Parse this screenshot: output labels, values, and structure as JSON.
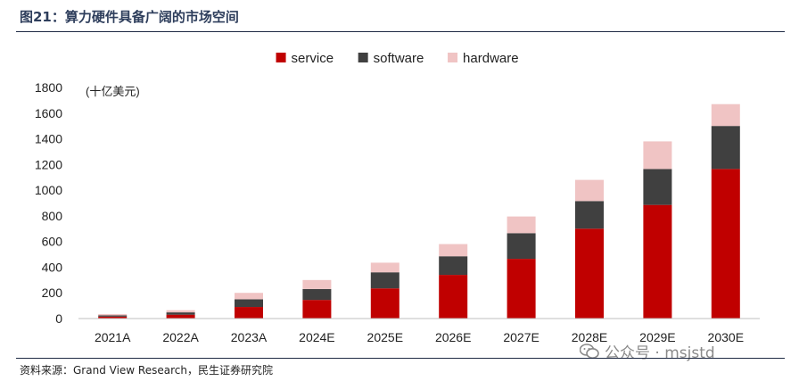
{
  "title": "图21：算力硬件具备广阔的市场空间",
  "source": "资料来源：Grand View Research，民生证券研究院",
  "watermark": "公众号 · msjstd",
  "colors": {
    "service": "#c00000",
    "software": "#404040",
    "hardware": "#f0c4c4"
  },
  "chart_data": {
    "type": "bar",
    "stacked": true,
    "unit": "(十亿美元)",
    "categories": [
      "2021A",
      "2022A",
      "2023A",
      "2024E",
      "2025E",
      "2026E",
      "2027E",
      "2028E",
      "2029E",
      "2030E"
    ],
    "series": [
      {
        "name": "service",
        "values": [
          15,
          30,
          90,
          145,
          235,
          340,
          465,
          700,
          885,
          1165
        ]
      },
      {
        "name": "software",
        "values": [
          10,
          18,
          60,
          85,
          125,
          145,
          200,
          215,
          280,
          335
        ]
      },
      {
        "name": "hardware",
        "values": [
          10,
          17,
          50,
          70,
          75,
          95,
          130,
          165,
          215,
          170
        ]
      }
    ],
    "ylim": [
      0,
      1800
    ],
    "yticks": [
      0,
      200,
      400,
      600,
      800,
      1000,
      1200,
      1400,
      1600,
      1800
    ],
    "legend_position": "top-center"
  }
}
